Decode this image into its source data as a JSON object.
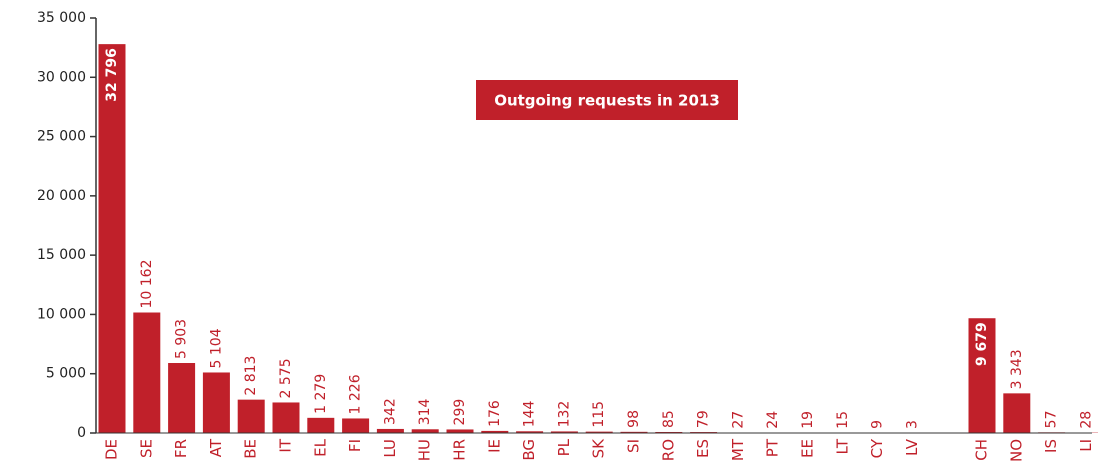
{
  "chart_data": {
    "type": "bar",
    "title": "Outgoing requests in 2013",
    "categories": [
      "DE",
      "SE",
      "FR",
      "AT",
      "BE",
      "IT",
      "EL",
      "FI",
      "LU",
      "HU",
      "HR",
      "IE",
      "BG",
      "PL",
      "SK",
      "SI",
      "RO",
      "ES",
      "MT",
      "PT",
      "EE",
      "LT",
      "CY",
      "LV",
      null,
      "CH",
      "NO",
      "IS",
      "LI"
    ],
    "values": [
      32796,
      10162,
      5903,
      5104,
      2813,
      2575,
      1279,
      1226,
      342,
      314,
      299,
      176,
      144,
      132,
      115,
      98,
      85,
      79,
      27,
      24,
      19,
      15,
      9,
      3,
      null,
      9679,
      3343,
      57,
      28
    ],
    "value_labels": [
      "32 796",
      "10 162",
      "5 903",
      "5 104",
      "2 813",
      "2 575",
      "1 279",
      "1 226",
      "342",
      "314",
      "299",
      "176",
      "144",
      "132",
      "115",
      "98",
      "85",
      "79",
      "27",
      "24",
      "19",
      "15",
      "9",
      "3",
      null,
      "9 679",
      "3 343",
      "57",
      "28"
    ],
    "color": "#c0202a",
    "ylim": [
      0,
      35000
    ],
    "yticks": [
      0,
      {
        "value": 5000,
        "label": "5 000"
      },
      {
        "value": 10000,
        "label": "10 000"
      },
      {
        "value": 15000,
        "label": "15 000"
      },
      {
        "value": 20000,
        "label": "20 000"
      },
      {
        "value": 25000,
        "label": "25 000"
      },
      {
        "value": 30000,
        "label": "30 000"
      },
      {
        "value": 35000,
        "label": "35 000"
      }
    ]
  }
}
